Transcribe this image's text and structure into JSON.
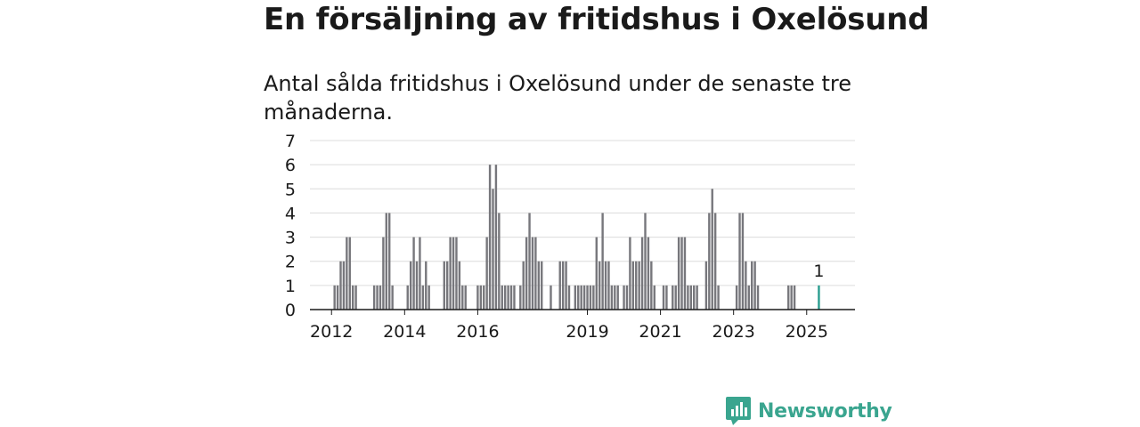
{
  "title": "En försäljning av fritidshus i Oxelösund",
  "subtitle": "Antal sålda fritidshus i Oxelösund under de senaste tre månaderna.",
  "brand": {
    "name": "Newsworthy",
    "icon": "newsworthy-logo-icon",
    "color": "#3aa58f"
  },
  "chart_data": {
    "type": "bar",
    "ylim": [
      0,
      7
    ],
    "yticks": [
      "0",
      "1",
      "2",
      "3",
      "4",
      "5",
      "6",
      "7"
    ],
    "xtick_labels": [
      "2012",
      "2014",
      "2016",
      "2019",
      "2021",
      "2023",
      "2025"
    ],
    "start": "2011-01",
    "bar_color": "#77777c",
    "highlight_color": "#2a9d8f",
    "grid": true,
    "values": [
      0,
      0,
      0,
      0,
      0,
      0,
      0,
      0,
      0,
      0,
      0,
      0,
      0,
      1,
      1,
      2,
      2,
      3,
      3,
      1,
      1,
      0,
      0,
      0,
      0,
      0,
      1,
      1,
      1,
      3,
      4,
      4,
      1,
      0,
      0,
      0,
      0,
      1,
      2,
      3,
      2,
      3,
      1,
      2,
      1,
      0,
      0,
      0,
      0,
      2,
      2,
      3,
      3,
      3,
      2,
      1,
      1,
      0,
      0,
      0,
      1,
      1,
      1,
      3,
      6,
      5,
      6,
      4,
      1,
      1,
      1,
      1,
      1,
      0,
      1,
      2,
      3,
      4,
      3,
      3,
      2,
      2,
      0,
      0,
      1,
      0,
      0,
      2,
      2,
      2,
      1,
      0,
      1,
      1,
      1,
      1,
      1,
      1,
      1,
      3,
      2,
      4,
      2,
      2,
      1,
      1,
      1,
      0,
      1,
      1,
      3,
      2,
      2,
      2,
      3,
      4,
      3,
      2,
      1,
      0,
      0,
      1,
      1,
      0,
      1,
      1,
      3,
      3,
      3,
      1,
      1,
      1,
      1,
      0,
      0,
      2,
      4,
      5,
      4,
      1,
      0,
      0,
      0,
      0,
      0,
      1,
      4,
      4,
      2,
      1,
      2,
      2,
      1,
      0,
      0,
      0,
      0,
      0,
      0,
      0,
      0,
      0,
      1,
      1,
      1,
      0,
      0,
      0,
      0,
      0,
      0,
      0,
      1
    ],
    "highlight_index": 172,
    "highlight_label": "1"
  }
}
